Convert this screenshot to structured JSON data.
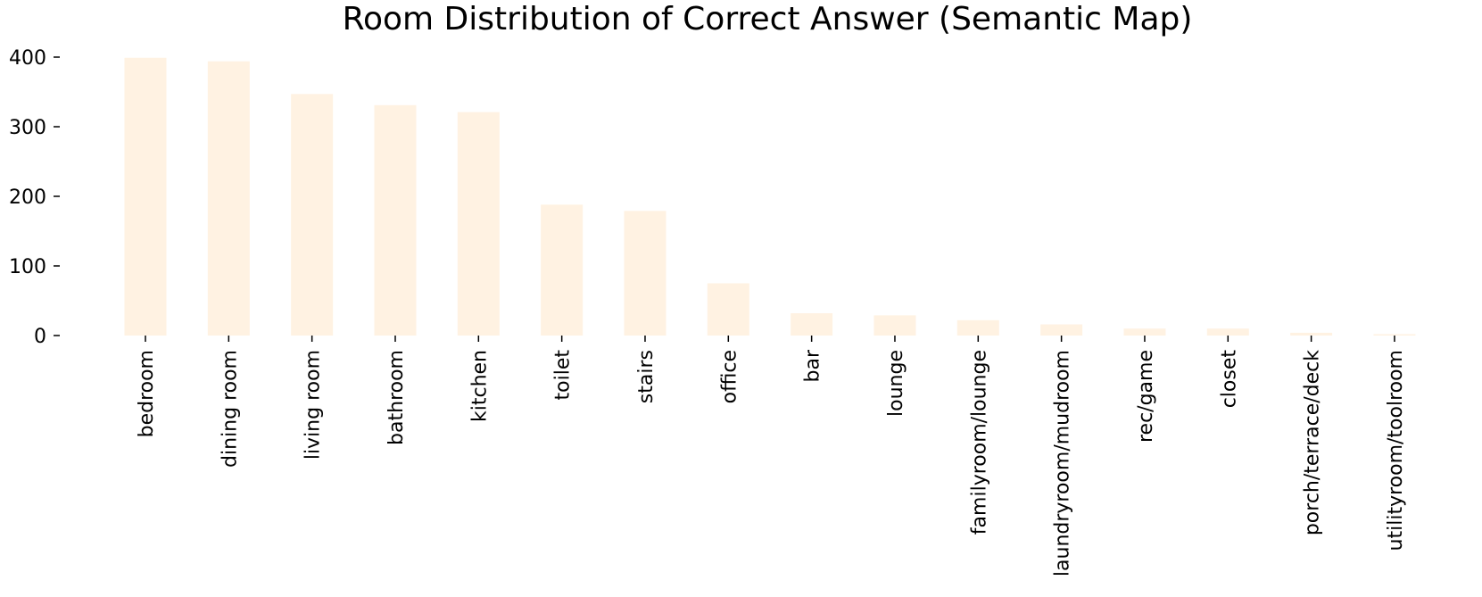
{
  "chart_data": {
    "type": "bar",
    "title": "Room Distribution of Correct Answer (Semantic Map)",
    "xlabel": "",
    "ylabel": "",
    "categories": [
      "bedroom",
      "dining room",
      "living room",
      "bathroom",
      "kitchen",
      "toilet",
      "stairs",
      "office",
      "bar",
      "lounge",
      "familyroom/lounge",
      "laundryroom/mudroom",
      "rec/game",
      "closet",
      "porch/terrace/deck",
      "utilityroom/toolroom"
    ],
    "values": [
      399,
      394,
      347,
      331,
      321,
      188,
      179,
      75,
      32,
      29,
      22,
      16,
      10,
      10,
      4,
      2
    ],
    "ylim": [
      0,
      400
    ],
    "yticks": [
      0,
      100,
      200,
      300,
      400
    ],
    "grid": false,
    "legend": "none",
    "bar_color": "#fff2e2"
  }
}
